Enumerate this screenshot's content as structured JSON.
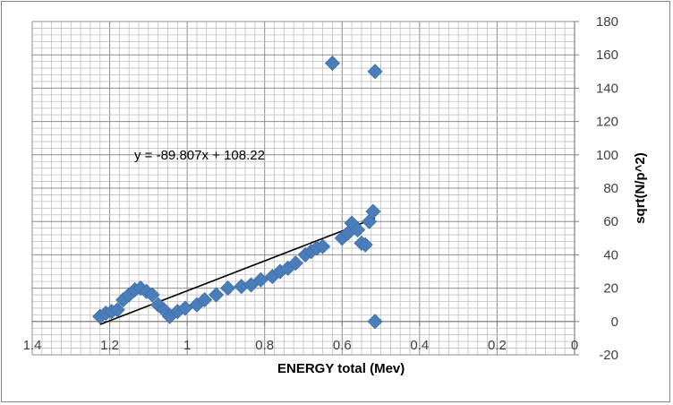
{
  "chart_data": {
    "type": "scatter",
    "title": "",
    "xlabel": "ENERGY total  (Mev)",
    "ylabel": "sqrt(N/p^2)",
    "xlim": [
      1.4,
      0
    ],
    "ylim": [
      -20,
      180
    ],
    "x_reversed": true,
    "x_ticks": [
      1.4,
      1.2,
      1,
      0.8,
      0.6,
      0.4,
      0.2,
      0
    ],
    "x_tick_labels": [
      "1.4",
      "1.2",
      "1",
      "0.8",
      "0.6",
      "0.4",
      "0.2",
      "0"
    ],
    "y_ticks": [
      -20,
      0,
      20,
      40,
      60,
      80,
      100,
      120,
      140,
      160,
      180
    ],
    "y_tick_labels": [
      "-20",
      "0",
      "20",
      "40",
      "60",
      "80",
      "100",
      "120",
      "140",
      "160",
      "180"
    ],
    "y_axis_position": "right",
    "grid": true,
    "legend": "none",
    "colors": {
      "marker": "#4a7ebb",
      "trendline": "#000000",
      "grid": "#bfbfbf"
    },
    "trendline": {
      "equation": "y = -89.807x + 108.22",
      "slope": -89.807,
      "intercept": 108.22,
      "x_range": [
        1.225,
        0.515
      ]
    },
    "points": [
      {
        "x": 1.225,
        "y": 3
      },
      {
        "x": 1.21,
        "y": 5
      },
      {
        "x": 1.195,
        "y": 6
      },
      {
        "x": 1.18,
        "y": 7
      },
      {
        "x": 1.165,
        "y": 13
      },
      {
        "x": 1.15,
        "y": 16
      },
      {
        "x": 1.135,
        "y": 19
      },
      {
        "x": 1.12,
        "y": 20
      },
      {
        "x": 1.105,
        "y": 18
      },
      {
        "x": 1.09,
        "y": 16
      },
      {
        "x": 1.075,
        "y": 10
      },
      {
        "x": 1.06,
        "y": 7
      },
      {
        "x": 1.045,
        "y": 3
      },
      {
        "x": 1.025,
        "y": 6
      },
      {
        "x": 1.005,
        "y": 8
      },
      {
        "x": 0.975,
        "y": 10
      },
      {
        "x": 0.955,
        "y": 13
      },
      {
        "x": 0.925,
        "y": 16
      },
      {
        "x": 0.895,
        "y": 20
      },
      {
        "x": 0.86,
        "y": 21
      },
      {
        "x": 0.835,
        "y": 22
      },
      {
        "x": 0.81,
        "y": 25
      },
      {
        "x": 0.78,
        "y": 27
      },
      {
        "x": 0.76,
        "y": 30
      },
      {
        "x": 0.74,
        "y": 32
      },
      {
        "x": 0.72,
        "y": 35
      },
      {
        "x": 0.695,
        "y": 40
      },
      {
        "x": 0.68,
        "y": 42
      },
      {
        "x": 0.665,
        "y": 44
      },
      {
        "x": 0.65,
        "y": 45
      },
      {
        "x": 0.625,
        "y": 155
      },
      {
        "x": 0.6,
        "y": 50
      },
      {
        "x": 0.585,
        "y": 53
      },
      {
        "x": 0.575,
        "y": 59
      },
      {
        "x": 0.56,
        "y": 55
      },
      {
        "x": 0.55,
        "y": 47
      },
      {
        "x": 0.54,
        "y": 46
      },
      {
        "x": 0.53,
        "y": 60
      },
      {
        "x": 0.52,
        "y": 66
      },
      {
        "x": 0.515,
        "y": 150
      },
      {
        "x": 0.515,
        "y": 0
      }
    ]
  }
}
